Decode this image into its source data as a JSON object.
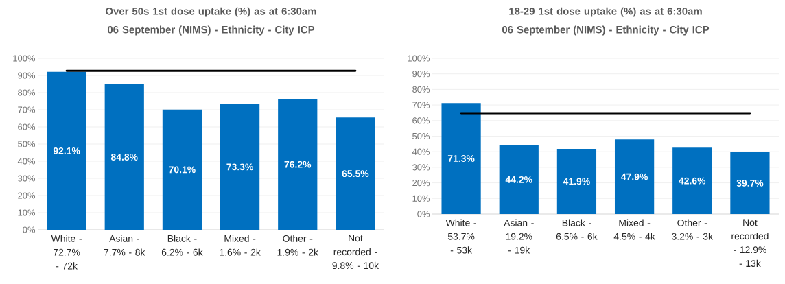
{
  "chart_data": [
    {
      "type": "bar",
      "title": "Over 50s 1st dose uptake (%) as at 6:30am 06 September (NIMS) - Ethnicity - City ICP",
      "categories": [
        "White - 72.7% - 72k",
        "Asian - 7.7% - 8k",
        "Black - 6.2% - 6k",
        "Mixed - 1.6% - 2k",
        "Other - 1.9% - 2k",
        "Not recorded - 9.8% - 10k"
      ],
      "series": [
        {
          "color": "#0070c0",
          "values": [
            92.1,
            84.8,
            70.1,
            73.3,
            76.2,
            65.5
          ],
          "value_labels": [
            "92.1%",
            "84.8%",
            "70.1%",
            "73.3%",
            "76.2%",
            "65.5%"
          ]
        },
        {
          "type": "line",
          "color": "#000000",
          "values": [
            92.7,
            92.7,
            92.7,
            92.7,
            92.7,
            92.7
          ]
        }
      ],
      "ylim": [
        0,
        100
      ],
      "yticks": [
        {
          "value": 0,
          "label": "0%"
        },
        {
          "value": 10,
          "label": "10%"
        },
        {
          "value": 20,
          "label": "20%"
        },
        {
          "value": 30,
          "label": "30%"
        },
        {
          "value": 40,
          "label": "40%"
        },
        {
          "value": 50,
          "label": "50%"
        },
        {
          "value": 60,
          "label": "60%"
        },
        {
          "value": 70,
          "label": "70%"
        },
        {
          "value": 80,
          "label": "80%"
        },
        {
          "value": 90,
          "label": "90%"
        },
        {
          "value": 100,
          "label": "100%"
        }
      ],
      "grid": "y"
    },
    {
      "type": "bar",
      "title": "18-29 1st dose uptake (%) as at 6:30am 06 September (NIMS) - Ethnicity - City ICP",
      "categories": [
        "White - 53.7% - 53k",
        "Asian - 19.2% - 19k",
        "Black - 6.5% - 6k",
        "Mixed - 4.5% - 4k",
        "Other - 3.2% - 3k",
        "Not recorded - 12.9% - 13k"
      ],
      "series": [
        {
          "color": "#0070c0",
          "values": [
            71.3,
            44.2,
            41.9,
            47.9,
            42.6,
            39.7
          ],
          "value_labels": [
            "71.3%",
            "44.2%",
            "41.9%",
            "47.9%",
            "42.6%",
            "39.7%"
          ]
        },
        {
          "type": "line",
          "color": "#000000",
          "values": [
            64.8,
            64.8,
            64.8,
            64.8,
            64.8,
            64.8
          ]
        }
      ],
      "ylim": [
        0,
        100
      ],
      "yticks": [
        {
          "value": 0,
          "label": "0%"
        },
        {
          "value": 10,
          "label": "10%"
        },
        {
          "value": 20,
          "label": "20%"
        },
        {
          "value": 30,
          "label": "30%"
        },
        {
          "value": 40,
          "label": "40%"
        },
        {
          "value": 50,
          "label": "50%"
        },
        {
          "value": 60,
          "label": "60%"
        },
        {
          "value": 70,
          "label": "70%"
        },
        {
          "value": 80,
          "label": "80%"
        },
        {
          "value": 90,
          "label": "90%"
        },
        {
          "value": 100,
          "label": "100%"
        }
      ],
      "grid": "y"
    }
  ]
}
